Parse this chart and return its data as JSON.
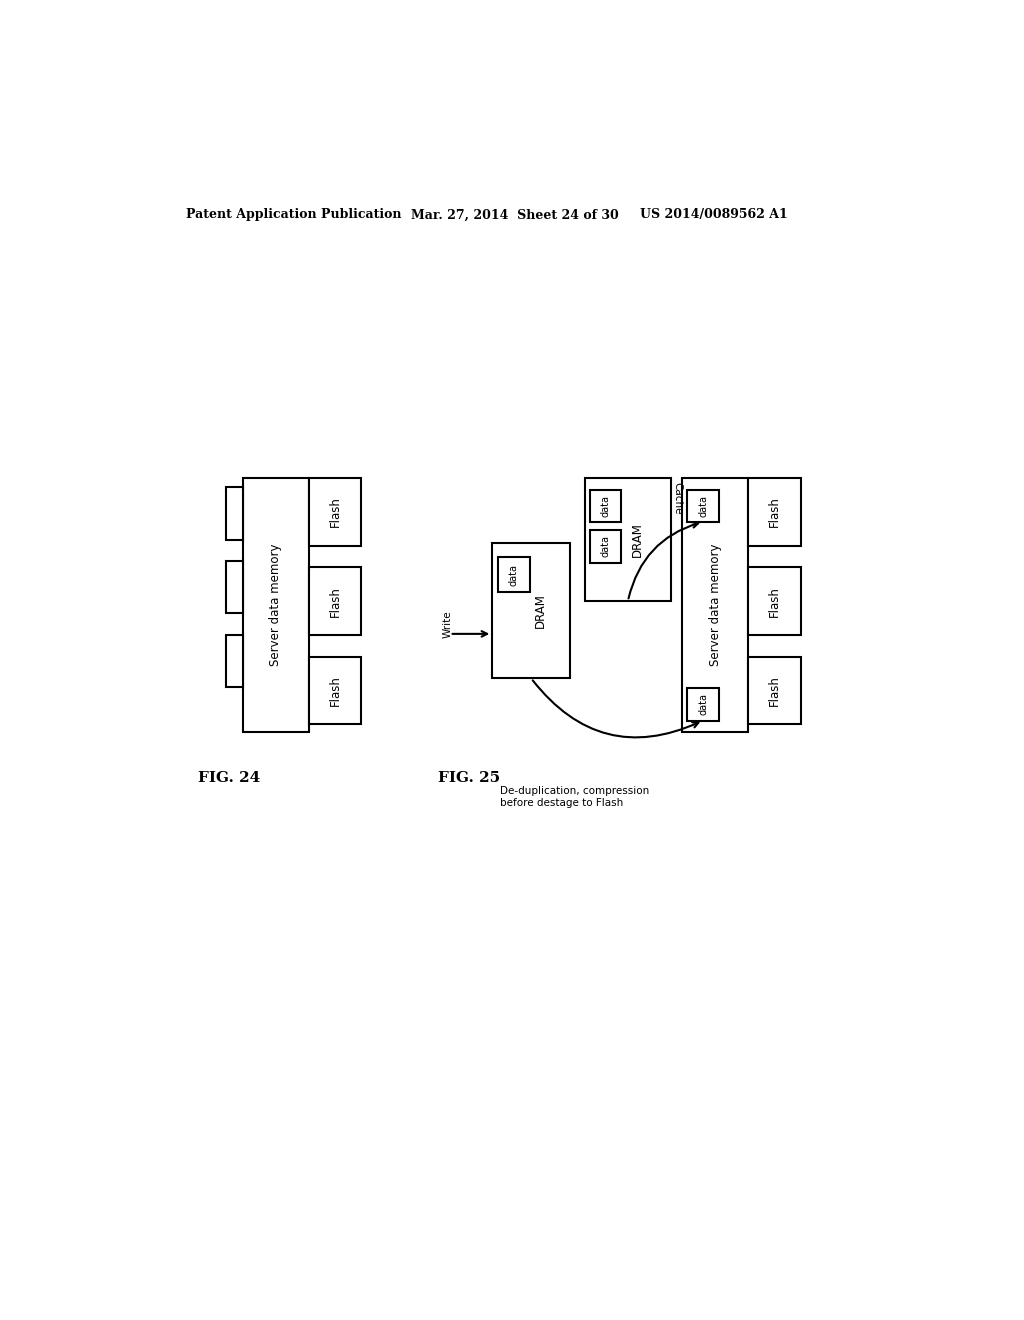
{
  "bg_color": "#ffffff",
  "header_left": "Patent Application Publication",
  "header_mid": "Mar. 27, 2014  Sheet 24 of 30",
  "header_right": "US 2014/0089562 A1",
  "fig24_label": "FIG. 24",
  "fig25_label": "FIG. 25",
  "fig25_caption": "De-duplication, compression\nbefore destage to Flash"
}
